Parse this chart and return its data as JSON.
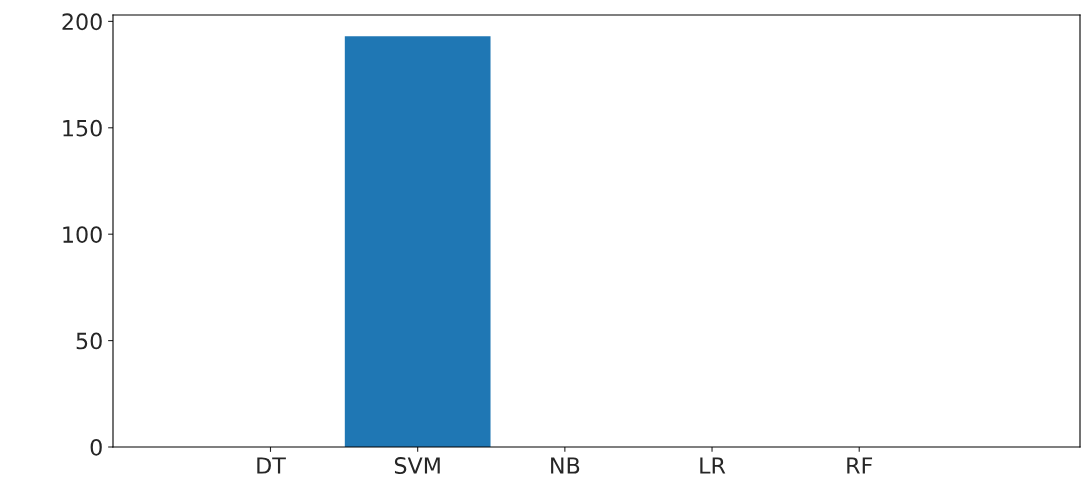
{
  "chart_data": {
    "type": "bar",
    "categories": [
      "DT",
      "SVM",
      "NB",
      "LR",
      "RF"
    ],
    "values": [
      0,
      193,
      0,
      0,
      0
    ],
    "color": "#1f77b4",
    "ylim": [
      0,
      203
    ],
    "yticks": [
      0,
      50,
      100,
      150,
      200
    ],
    "grid": false
  }
}
